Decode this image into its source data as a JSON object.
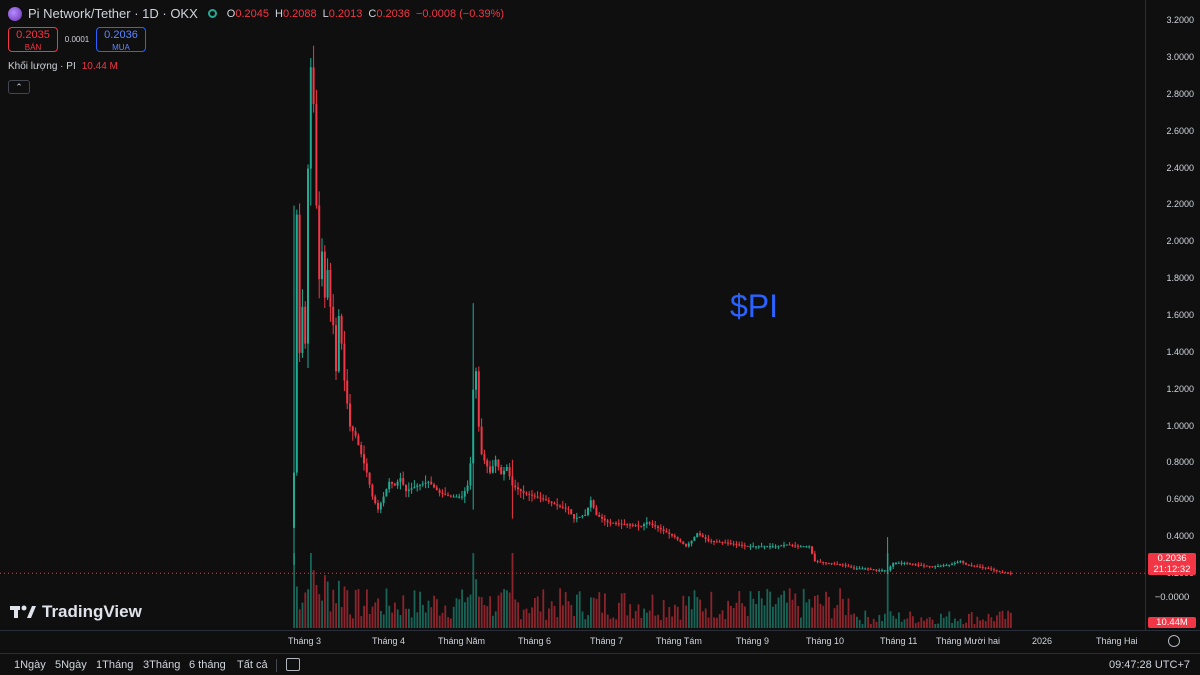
{
  "header": {
    "title": "Pi Network/Tether · 1D · OKX",
    "o_label": "O",
    "o_value": "0.2045",
    "h_label": "H",
    "h_value": "0.2088",
    "l_label": "L",
    "l_value": "0.2013",
    "c_label": "C",
    "c_value": "0.2036",
    "change": "−0.0008 (−0.39%)"
  },
  "trade": {
    "sell_price": "0.2035",
    "sell_label": "BÁN",
    "spread": "0.0001",
    "buy_price": "0.2036",
    "buy_label": "MUA"
  },
  "volume_legend": {
    "label": "Khối lượng · PI",
    "value": "10.44 M"
  },
  "collapse_label": "⌃",
  "watermark": "$PI",
  "logo_text": "TradingView",
  "price_axis": {
    "current_price": "0.2036",
    "countdown": "21:12:32",
    "volume_tag": "10.44M",
    "zero_label": "−0.0000"
  },
  "bottom_bar": {
    "ranges": [
      "1Ngày",
      "5Ngày",
      "1Tháng",
      "3Tháng",
      "6 tháng",
      "Tất cả"
    ],
    "clock": "09:47:28 UTC+7"
  },
  "colors": {
    "up": "#22ab94",
    "down": "#f23645",
    "accent": "#2962ff"
  },
  "chart_data": {
    "type": "candlestick",
    "title": "Pi Network/Tether · 1D · OKX",
    "ylim": [
      -0.05,
      3.25
    ],
    "yticks": [
      "3.2000",
      "3.0000",
      "2.8000",
      "2.6000",
      "2.4000",
      "2.2000",
      "2.0000",
      "1.8000",
      "1.6000",
      "1.4000",
      "1.2000",
      "1.0000",
      "0.8000",
      "0.6000",
      "0.4000",
      "0.2000"
    ],
    "xticks": [
      "Tháng 3",
      "Tháng 4",
      "Tháng Năm",
      "Tháng 6",
      "Tháng 7",
      "Tháng Tám",
      "Tháng 9",
      "Tháng 10",
      "Tháng 11",
      "Tháng Mười hai",
      "2026",
      "Tháng Hai"
    ],
    "price_path": [
      [
        0,
        0.75
      ],
      [
        1,
        2.15
      ],
      [
        2,
        1.4
      ],
      [
        3,
        1.65
      ],
      [
        4,
        1.45
      ],
      [
        5,
        2.4
      ],
      [
        6,
        2.95
      ],
      [
        7,
        2.75
      ],
      [
        8,
        2.2
      ],
      [
        9,
        1.8
      ],
      [
        10,
        1.95
      ],
      [
        11,
        1.7
      ],
      [
        12,
        1.85
      ],
      [
        13,
        1.65
      ],
      [
        14,
        1.55
      ],
      [
        15,
        1.3
      ],
      [
        16,
        1.6
      ],
      [
        17,
        1.45
      ],
      [
        18,
        1.25
      ],
      [
        20,
        1.0
      ],
      [
        22,
        0.95
      ],
      [
        24,
        0.85
      ],
      [
        26,
        0.75
      ],
      [
        28,
        0.62
      ],
      [
        30,
        0.55
      ],
      [
        32,
        0.62
      ],
      [
        34,
        0.7
      ],
      [
        36,
        0.68
      ],
      [
        38,
        0.72
      ],
      [
        40,
        0.65
      ],
      [
        44,
        0.68
      ],
      [
        48,
        0.7
      ],
      [
        52,
        0.64
      ],
      [
        56,
        0.62
      ],
      [
        60,
        0.62
      ],
      [
        62,
        0.68
      ],
      [
        63,
        0.8
      ],
      [
        64,
        1.2
      ],
      [
        65,
        1.3
      ],
      [
        66,
        1.0
      ],
      [
        67,
        0.85
      ],
      [
        70,
        0.75
      ],
      [
        72,
        0.82
      ],
      [
        74,
        0.74
      ],
      [
        76,
        0.78
      ],
      [
        78,
        0.68
      ],
      [
        82,
        0.64
      ],
      [
        86,
        0.62
      ],
      [
        90,
        0.6
      ],
      [
        94,
        0.57
      ],
      [
        98,
        0.55
      ],
      [
        100,
        0.5
      ],
      [
        104,
        0.52
      ],
      [
        106,
        0.6
      ],
      [
        108,
        0.52
      ],
      [
        112,
        0.48
      ],
      [
        118,
        0.47
      ],
      [
        124,
        0.46
      ],
      [
        126,
        0.48
      ],
      [
        130,
        0.45
      ],
      [
        136,
        0.4
      ],
      [
        140,
        0.35
      ],
      [
        142,
        0.38
      ],
      [
        144,
        0.42
      ],
      [
        148,
        0.38
      ],
      [
        154,
        0.37
      ],
      [
        158,
        0.36
      ],
      [
        162,
        0.35
      ],
      [
        168,
        0.35
      ],
      [
        172,
        0.35
      ],
      [
        176,
        0.36
      ],
      [
        180,
        0.35
      ],
      [
        184,
        0.35
      ],
      [
        186,
        0.27
      ],
      [
        190,
        0.26
      ],
      [
        196,
        0.25
      ],
      [
        200,
        0.23
      ],
      [
        204,
        0.23
      ],
      [
        208,
        0.22
      ],
      [
        212,
        0.22
      ],
      [
        214,
        0.26
      ],
      [
        218,
        0.26
      ],
      [
        222,
        0.25
      ],
      [
        228,
        0.24
      ],
      [
        234,
        0.25
      ],
      [
        238,
        0.27
      ],
      [
        240,
        0.25
      ],
      [
        244,
        0.24
      ],
      [
        248,
        0.23
      ],
      [
        252,
        0.21
      ],
      [
        256,
        0.2036
      ]
    ],
    "spikes": [
      {
        "i": 0,
        "high": 2.2,
        "low": 0.25
      },
      {
        "i": 6,
        "high": 3.0,
        "low": 2.2
      },
      {
        "i": 64,
        "high": 1.67,
        "low": 0.55
      },
      {
        "i": 78,
        "high": 0.82,
        "low": 0.5
      },
      {
        "i": 212,
        "high": 0.4,
        "low": 0.2
      }
    ]
  }
}
